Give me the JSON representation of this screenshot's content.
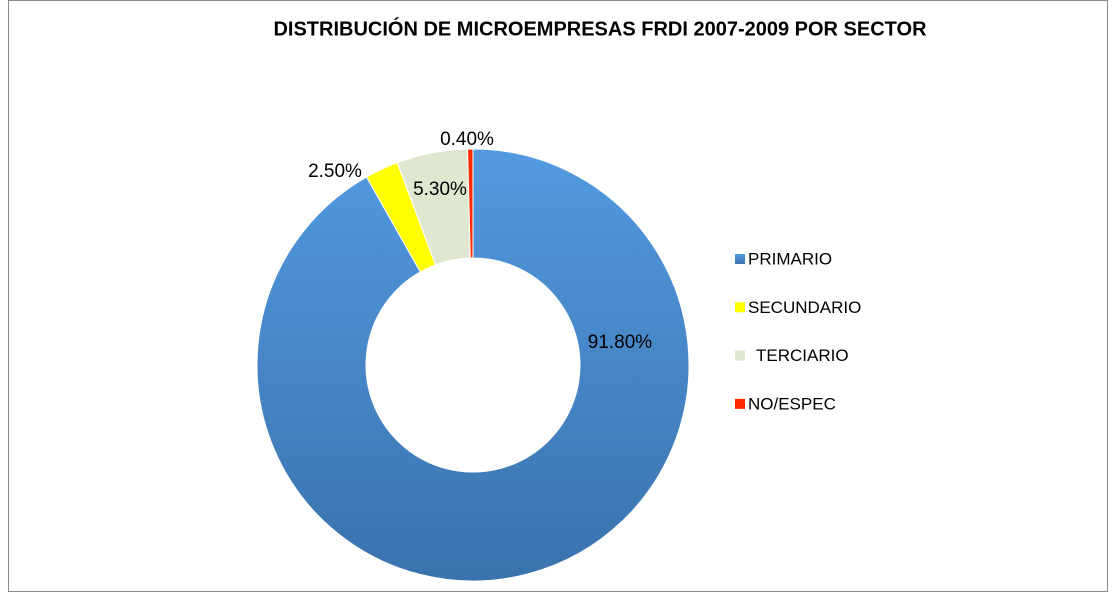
{
  "chart_data": {
    "type": "pie",
    "title": "DISTRIBUCIÓN DE MICROEMPRESAS FRDI 2007-2009 POR SECTOR",
    "categories": [
      "PRIMARIO",
      "SECUNDARIO",
      "TERCIARIO",
      "NO/ESPEC"
    ],
    "values": [
      91.8,
      2.5,
      5.3,
      0.4
    ],
    "value_labels": [
      "91.80%",
      "2.50%",
      "5.30%",
      "0.40%"
    ],
    "colors": [
      "#4a8ed3",
      "#ffff00",
      "#dfe7d0",
      "#ff2a00"
    ],
    "donut": true,
    "legend": "right"
  }
}
